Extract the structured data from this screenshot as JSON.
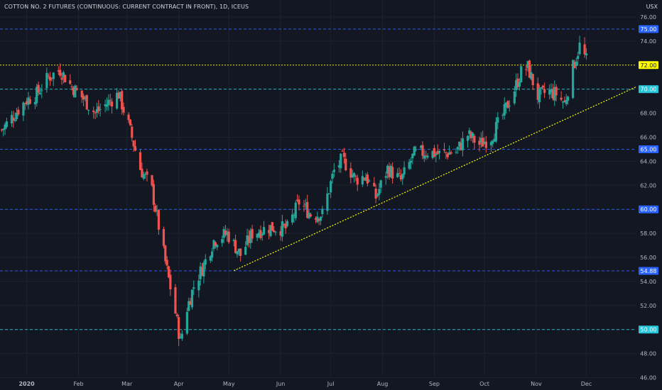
{
  "chart_data": {
    "type": "candlestick",
    "title": "COTTON NO. 2 FUTURES (CONTINUOUS: CURRENT CONTRACT IN FRONT), 1D, ICEUS",
    "currency": "USX",
    "ylim": [
      45.6,
      77.0
    ],
    "y_ticks": [
      "46.00",
      "48.00",
      "50.00",
      "52.00",
      "54.00",
      "56.00",
      "58.00",
      "60.00",
      "62.00",
      "64.00",
      "66.00",
      "68.00",
      "70.00",
      "72.00",
      "74.00",
      "76.00"
    ],
    "x_ticks": [
      {
        "label": "2020",
        "date": "2020-01-01",
        "bold": true
      },
      {
        "label": "Feb",
        "date": "2020-02-01"
      },
      {
        "label": "Mar",
        "date": "2020-03-01"
      },
      {
        "label": "Apr",
        "date": "2020-04-01"
      },
      {
        "label": "May",
        "date": "2020-05-01"
      },
      {
        "label": "Jun",
        "date": "2020-06-01"
      },
      {
        "label": "Jul",
        "date": "2020-07-01"
      },
      {
        "label": "Aug",
        "date": "2020-08-01"
      },
      {
        "label": "Sep",
        "date": "2020-09-01"
      },
      {
        "label": "Oct",
        "date": "2020-10-01"
      },
      {
        "label": "Nov",
        "date": "2020-11-01"
      },
      {
        "label": "Dec",
        "date": "2020-12-01"
      }
    ],
    "horizontal_levels": [
      {
        "value": 75.0,
        "label": "75.00",
        "color": "#2962ff",
        "style": "dashed"
      },
      {
        "value": 72.0,
        "label": "72.00",
        "color": "#ffff00",
        "style": "dotted"
      },
      {
        "value": 70.0,
        "label": "70.00",
        "color": "#26c6da",
        "style": "dashed"
      },
      {
        "value": 65.0,
        "label": "65.00",
        "color": "#2962ff",
        "style": "dashed"
      },
      {
        "value": 60.0,
        "label": "60.00",
        "color": "#2962ff",
        "style": "dashed"
      },
      {
        "value": 54.88,
        "label": "54.88",
        "color": "#2962ff",
        "style": "dashed"
      },
      {
        "value": 50.0,
        "label": "50.00",
        "color": "#26c6da",
        "style": "dashed"
      }
    ],
    "trendline": {
      "color": "#ffff00",
      "style": "dotted",
      "start": {
        "date": "2020-05-04",
        "value": 54.9
      },
      "end": {
        "date": "2020-12-31",
        "value": 70.2
      }
    },
    "up_color": "#26a69a",
    "down_color": "#ef5350",
    "start_date": "2019-12-16",
    "end_date": "2020-12-31",
    "anchors": [
      [
        "2019-12-17",
        66.6
      ],
      [
        "2019-12-24",
        67.8
      ],
      [
        "2019-12-31",
        69.0
      ],
      [
        "2020-01-07",
        69.6
      ],
      [
        "2020-01-14",
        71.0
      ],
      [
        "2020-01-21",
        71.6
      ],
      [
        "2020-01-28",
        70.2
      ],
      [
        "2020-02-04",
        69.2
      ],
      [
        "2020-02-11",
        68.0
      ],
      [
        "2020-02-18",
        68.8
      ],
      [
        "2020-02-25",
        69.6
      ],
      [
        "2020-03-02",
        67.0
      ],
      [
        "2020-03-09",
        63.4
      ],
      [
        "2020-03-16",
        61.6
      ],
      [
        "2020-03-20",
        58.6
      ],
      [
        "2020-03-24",
        55.6
      ],
      [
        "2020-03-30",
        51.4
      ],
      [
        "2020-04-02",
        49.0
      ],
      [
        "2020-04-06",
        51.8
      ],
      [
        "2020-04-10",
        53.6
      ],
      [
        "2020-04-16",
        55.4
      ],
      [
        "2020-04-22",
        57.4
      ],
      [
        "2020-04-30",
        58.0
      ],
      [
        "2020-05-08",
        56.2
      ],
      [
        "2020-05-15",
        58.0
      ],
      [
        "2020-05-25",
        58.5
      ],
      [
        "2020-06-05",
        58.4
      ],
      [
        "2020-06-12",
        60.6
      ],
      [
        "2020-06-19",
        59.6
      ],
      [
        "2020-06-26",
        59.6
      ],
      [
        "2020-07-03",
        63.2
      ],
      [
        "2020-07-08",
        64.2
      ],
      [
        "2020-07-16",
        62.5
      ],
      [
        "2020-07-22",
        62.8
      ],
      [
        "2020-07-28",
        61.0
      ],
      [
        "2020-08-04",
        63.4
      ],
      [
        "2020-08-12",
        62.4
      ],
      [
        "2020-08-20",
        64.6
      ],
      [
        "2020-08-28",
        64.8
      ],
      [
        "2020-09-04",
        64.6
      ],
      [
        "2020-09-14",
        64.8
      ],
      [
        "2020-09-21",
        66.2
      ],
      [
        "2020-09-28",
        65.4
      ],
      [
        "2020-10-05",
        66.0
      ],
      [
        "2020-10-12",
        67.8
      ],
      [
        "2020-10-19",
        70.0
      ],
      [
        "2020-10-23",
        71.4
      ],
      [
        "2020-10-27",
        71.8
      ],
      [
        "2020-11-02",
        69.4
      ],
      [
        "2020-11-08",
        69.8
      ],
      [
        "2020-11-13",
        69.6
      ],
      [
        "2020-11-18",
        68.8
      ],
      [
        "2020-11-23",
        71.8
      ],
      [
        "2020-11-27",
        73.6
      ],
      [
        "2020-12-01",
        72.4
      ]
    ]
  }
}
